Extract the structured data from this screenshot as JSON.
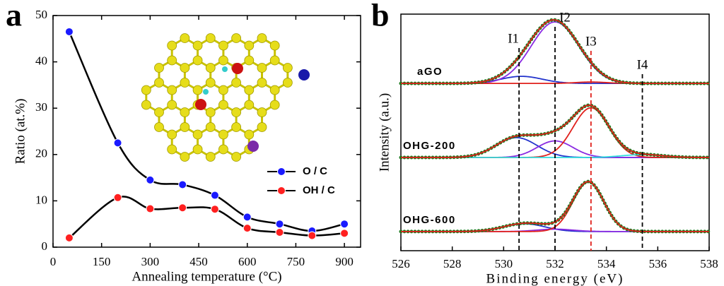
{
  "chart_data": [
    {
      "type": "scatter",
      "label": "a",
      "xlabel": "Annealing temperature (°C)",
      "ylabel": "Ratio (at.%)",
      "x": [
        50,
        200,
        300,
        400,
        500,
        600,
        700,
        800,
        900
      ],
      "series": [
        {
          "name": "O / C",
          "color": "#1a1aff",
          "values": [
            46.5,
            22.5,
            14.5,
            13.5,
            11.2,
            6.5,
            5,
            3.5,
            5
          ]
        },
        {
          "name": "OH / C",
          "color": "#ff2020",
          "values": [
            2,
            10.7,
            8.3,
            8.5,
            8.2,
            4.1,
            3.2,
            2.5,
            3
          ]
        }
      ],
      "xlim": [
        0,
        950
      ],
      "ylim": [
        0,
        50
      ],
      "xticks": [
        0,
        150,
        300,
        450,
        600,
        750,
        900
      ],
      "yticks": [
        0,
        10,
        20,
        30,
        40,
        50
      ],
      "legend": "center right"
    },
    {
      "type": "spectra",
      "label": "b",
      "xlabel": "Binding energy (eV)",
      "ylabel": "Intensity (a.u.)",
      "xlim": [
        526,
        538
      ],
      "xticks": [
        526,
        528,
        530,
        532,
        534,
        536,
        538
      ],
      "ylim": [
        0,
        100
      ],
      "envelope_color": "#e0201b",
      "points_color": "#1f7a1f",
      "lines": [
        {
          "label": "I1",
          "value": 530.6,
          "color": "#000000"
        },
        {
          "label": "I2",
          "value": 532,
          "color": "#000000"
        },
        {
          "label": "I3",
          "value": 533.4,
          "color": "#e0201b"
        },
        {
          "label": "I4",
          "value": 535.4,
          "color": "#000000"
        }
      ],
      "spectra": [
        {
          "name": "aGO",
          "baseline": 70.7,
          "peaks": [
            {
              "center": 530.7,
              "height": 3,
              "sigma": 0.8,
              "color": "#2233cc"
            },
            {
              "center": 532,
              "height": 26,
              "sigma": 0.93,
              "color": "#8a2be2"
            },
            {
              "center": 533.4,
              "height": 0.6,
              "sigma": 0.6,
              "color": "#e0201b"
            }
          ]
        },
        {
          "name": "OHG-200",
          "baseline": 39.4,
          "peaks": [
            {
              "center": 530.5,
              "height": 8.4,
              "sigma": 0.8,
              "color": "#2233cc"
            },
            {
              "center": 532,
              "height": 7,
              "sigma": 0.7,
              "color": "#8a2be2"
            },
            {
              "center": 533.4,
              "height": 21,
              "sigma": 0.7,
              "color": "#e0201b"
            },
            {
              "center": 535.4,
              "height": 1.2,
              "sigma": 0.8,
              "color": "#33dddd"
            }
          ]
        },
        {
          "name": "OHG-600",
          "baseline": 8.1,
          "peaks": [
            {
              "center": 530.8,
              "height": 3.3,
              "sigma": 0.8,
              "color": "#2233cc"
            },
            {
              "center": 532,
              "height": 1,
              "sigma": 0.7,
              "color": "#8a2be2"
            },
            {
              "center": 533.3,
              "height": 20.9,
              "sigma": 0.6,
              "color": "#e0201b"
            }
          ]
        }
      ]
    }
  ]
}
